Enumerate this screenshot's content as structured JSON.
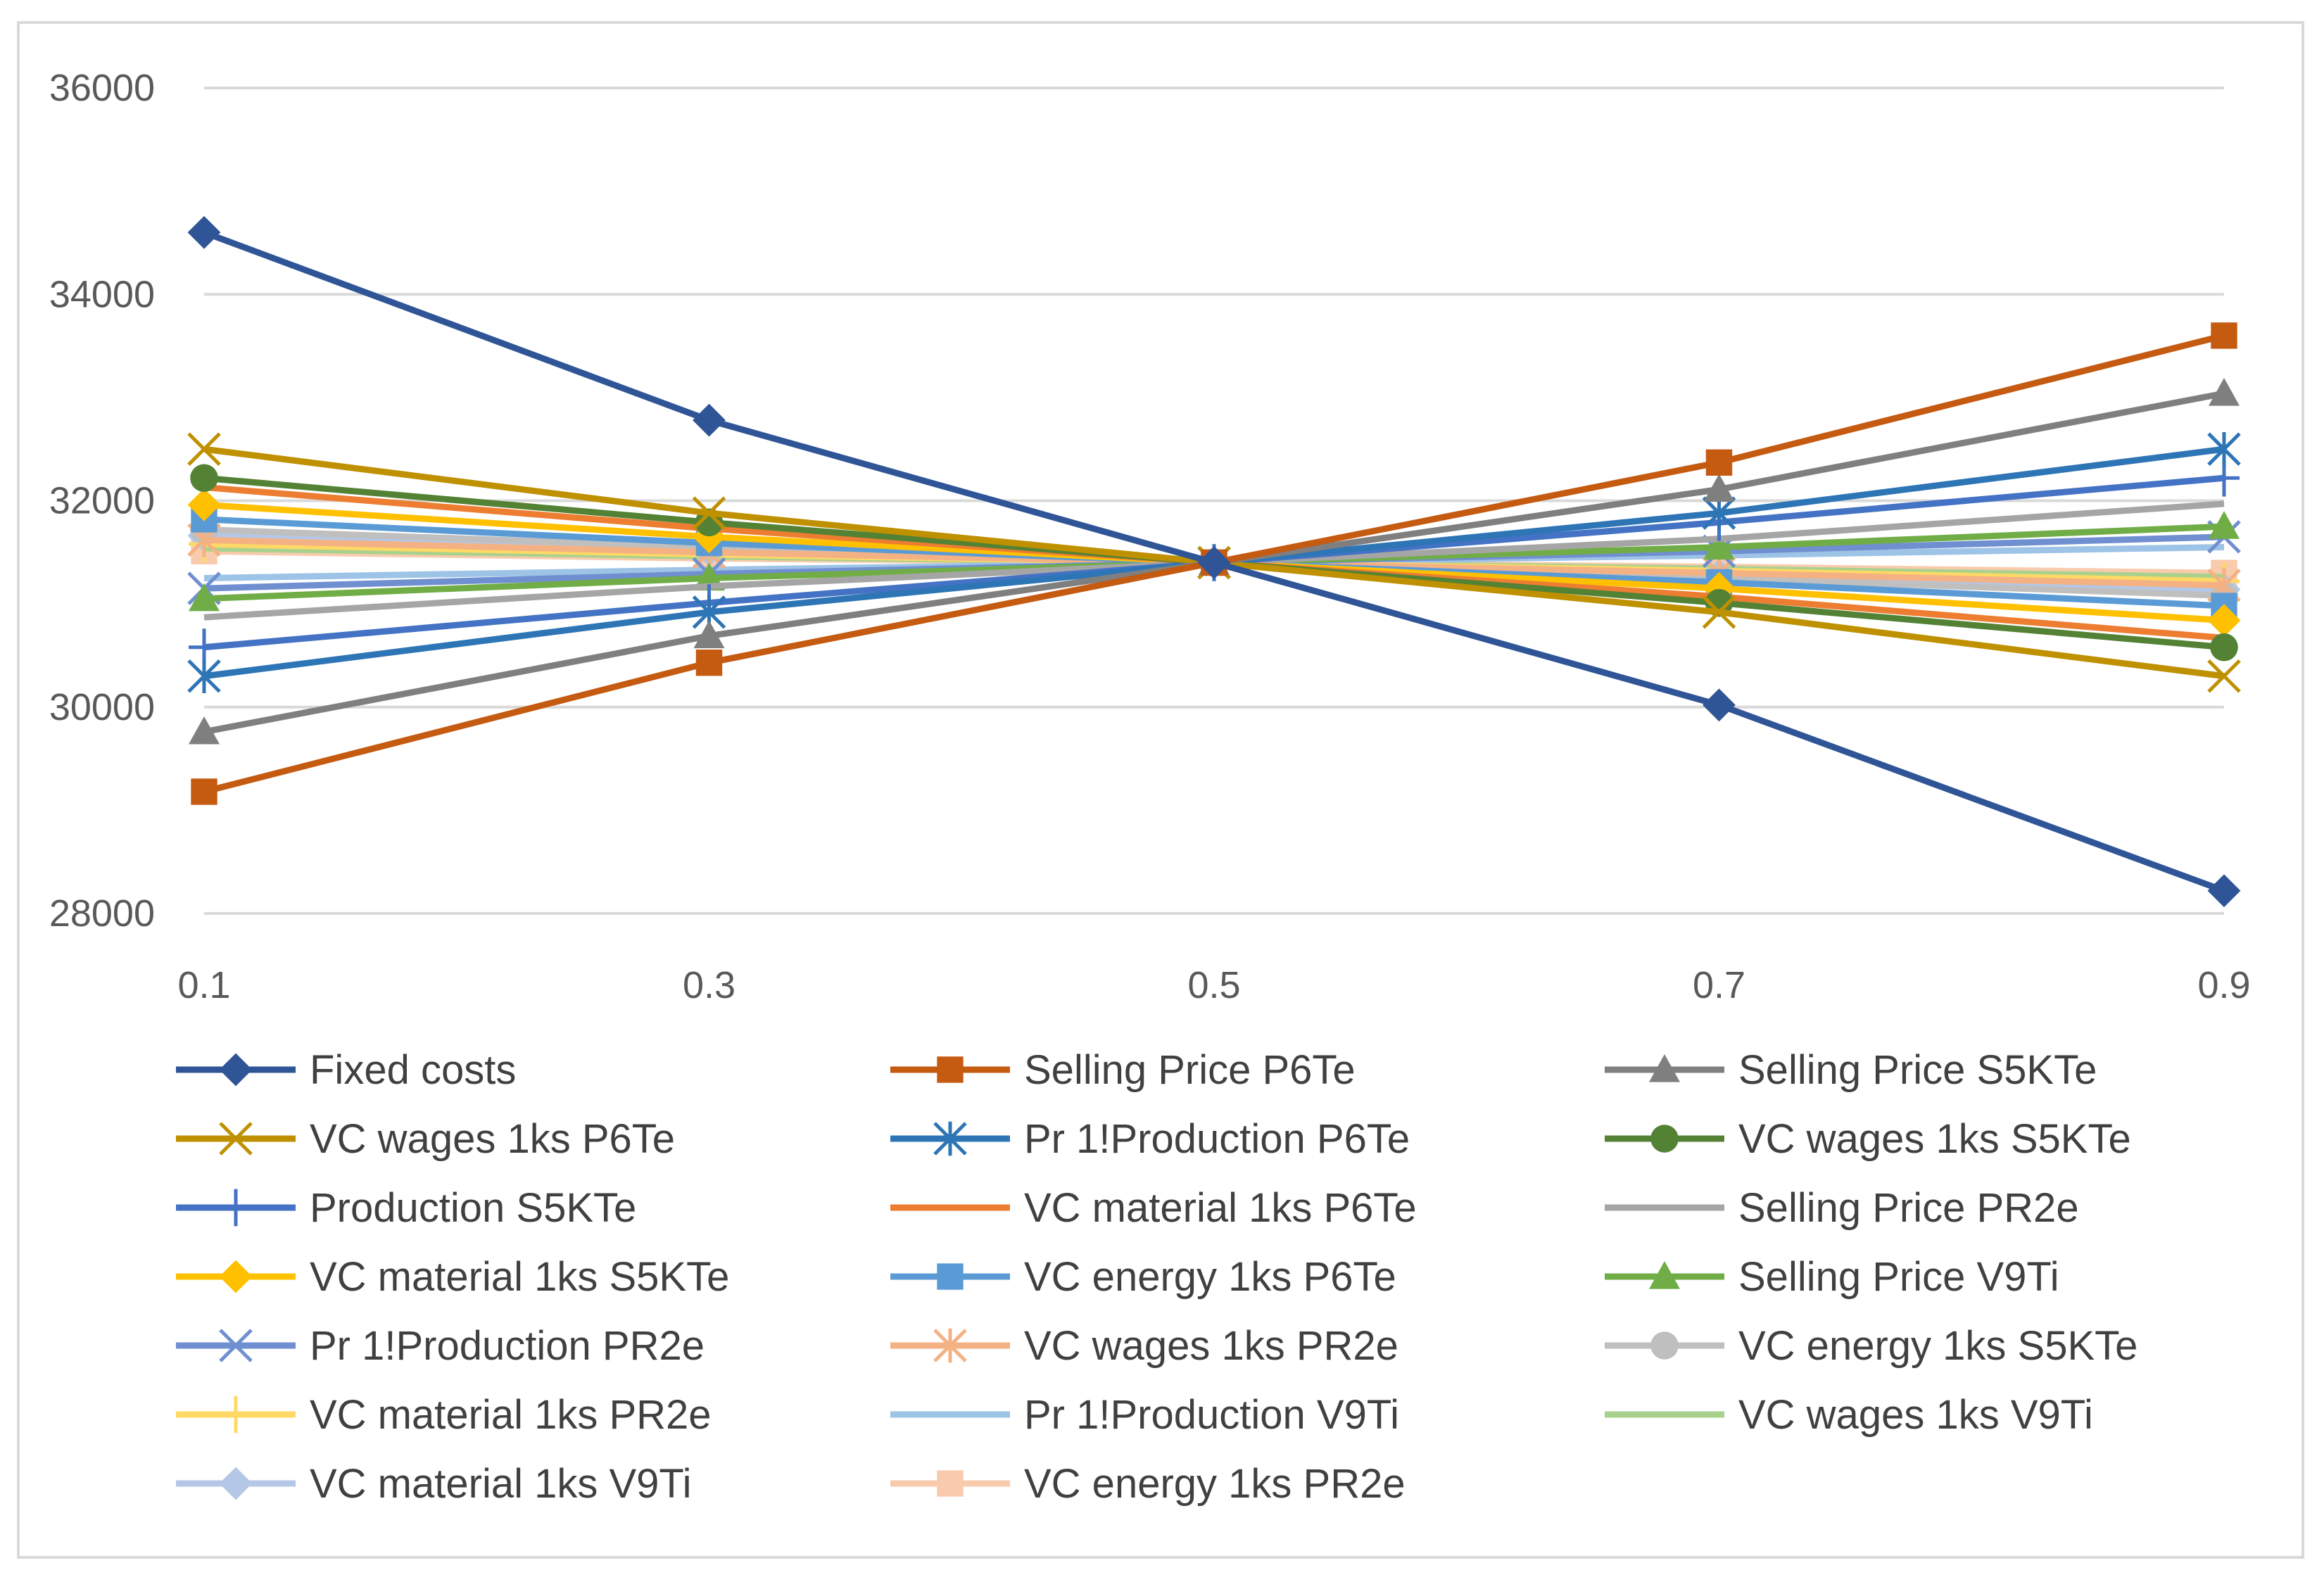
{
  "chart_data": {
    "type": "line",
    "title": "",
    "xlabel": "",
    "ylabel": "",
    "categories": [
      "0.1",
      "0.3",
      "0.5",
      "0.7",
      "0.9"
    ],
    "y_ticks": [
      "28000",
      "30000",
      "32000",
      "34000",
      "36000"
    ],
    "ylim": [
      28000,
      36000
    ],
    "grid": true,
    "legend_position": "bottom",
    "series": [
      {
        "name": "Fixed costs",
        "color": "#2f5597",
        "marker": "diamond",
        "values": [
          34600,
          32780,
          31400,
          30020,
          28220
        ]
      },
      {
        "name": "Selling Price P6Te",
        "color": "#c55a11",
        "marker": "square",
        "values": [
          29180,
          30430,
          31400,
          32370,
          33600
        ]
      },
      {
        "name": "Selling Price S5KTe",
        "color": "#7f7f7f",
        "marker": "triangle",
        "values": [
          29760,
          30690,
          31400,
          32110,
          33040
        ]
      },
      {
        "name": "VC wages 1ks P6Te",
        "color": "#bf9000",
        "marker": "x",
        "values": [
          32500,
          31880,
          31400,
          30920,
          30300
        ]
      },
      {
        "name": "Pr 1!Production P6Te",
        "color": "#2e75b6",
        "marker": "star",
        "values": [
          30300,
          30920,
          31400,
          31880,
          32500
        ]
      },
      {
        "name": "VC wages 1ks S5KTe",
        "color": "#548235",
        "marker": "circle",
        "values": [
          32220,
          31790,
          31400,
          31010,
          30580
        ]
      },
      {
        "name": "Production S5KTe",
        "color": "#4472c4",
        "marker": "plus",
        "values": [
          30580,
          31010,
          31400,
          31790,
          32220
        ]
      },
      {
        "name": "VC material 1ks P6Te",
        "color": "#ed7d31",
        "marker": "none",
        "values": [
          32130,
          31730,
          31400,
          31070,
          30670
        ]
      },
      {
        "name": "Selling Price PR2e",
        "color": "#a5a5a5",
        "marker": "none",
        "values": [
          30870,
          31170,
          31400,
          31630,
          31970
        ]
      },
      {
        "name": "VC material 1ks S5KTe",
        "color": "#ffc000",
        "marker": "diamond",
        "values": [
          31960,
          31650,
          31400,
          31150,
          30840
        ]
      },
      {
        "name": "VC energy 1ks P6Te",
        "color": "#5b9bd5",
        "marker": "square",
        "values": [
          31820,
          31590,
          31400,
          31210,
          30980
        ]
      },
      {
        "name": "Selling Price V9Ti",
        "color": "#70ad47",
        "marker": "triangle",
        "values": [
          31050,
          31250,
          31400,
          31550,
          31750
        ]
      },
      {
        "name": "Pr 1!Production PR2e",
        "color": "#6f8fd0",
        "marker": "x",
        "values": [
          31150,
          31290,
          31400,
          31510,
          31650
        ]
      },
      {
        "name": "VC wages 1ks PR2e",
        "color": "#f4b183",
        "marker": "star",
        "values": [
          31620,
          31500,
          31400,
          31300,
          31180
        ]
      },
      {
        "name": "VC energy 1ks S5KTe",
        "color": "#bfbfbf",
        "marker": "circle",
        "values": [
          31720,
          31550,
          31400,
          31250,
          31080
        ]
      },
      {
        "name": "VC material 1ks PR2e",
        "color": "#ffd966",
        "marker": "plus",
        "values": [
          31580,
          31480,
          31400,
          31320,
          31220
        ]
      },
      {
        "name": "Pr 1!Production V9Ti",
        "color": "#9dc3e6",
        "marker": "none",
        "values": [
          31250,
          31330,
          31400,
          31470,
          31550
        ]
      },
      {
        "name": "VC wages 1ks V9Ti",
        "color": "#a9d18e",
        "marker": "none",
        "values": [
          31540,
          31460,
          31400,
          31340,
          31260
        ]
      },
      {
        "name": "VC material 1ks V9Ti",
        "color": "#b4c7e7",
        "marker": "diamond",
        "values": [
          31660,
          31520,
          31400,
          31280,
          31140
        ]
      },
      {
        "name": "VC energy 1ks PR2e",
        "color": "#f8cbad",
        "marker": "square",
        "values": [
          31510,
          31440,
          31400,
          31360,
          31300
        ]
      }
    ]
  }
}
